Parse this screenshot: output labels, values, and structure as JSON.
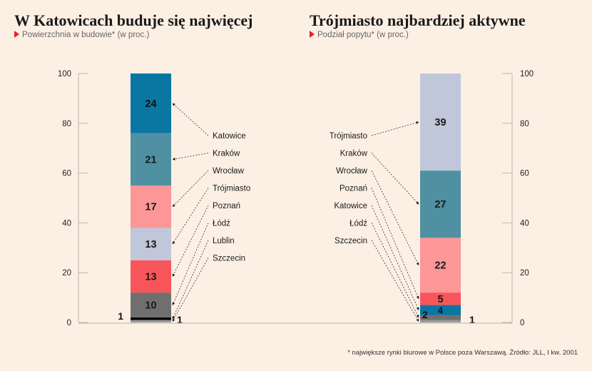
{
  "chart_data": [
    {
      "type": "bar",
      "stacked": true,
      "title": "W Katowicach buduje się najwięcej",
      "subtitle": "Powierzchnia w budowie* (w proc.)",
      "ylim": [
        0,
        100
      ],
      "yticks": [
        "0",
        "20",
        "40",
        "60",
        "80",
        "100"
      ],
      "axis_side": "left",
      "series": [
        {
          "name": "Katowice",
          "value": 24,
          "label": "24",
          "color": "#0a76a2"
        },
        {
          "name": "Kraków",
          "value": 21,
          "label": "21",
          "color": "#4f91a2"
        },
        {
          "name": "Wrocław",
          "value": 17,
          "label": "17",
          "color": "#fc9697"
        },
        {
          "name": "Trójmiasto",
          "value": 13,
          "label": "13",
          "color": "#c0c7da"
        },
        {
          "name": "Poznań",
          "value": 13,
          "label": "13",
          "color": "#f8555a"
        },
        {
          "name": "Łódź",
          "value": 10,
          "label": "10",
          "color": "#6f6f6f"
        },
        {
          "name": "Lublin",
          "value": 1,
          "label": "1",
          "color": "#000000"
        },
        {
          "name": "Szczecin",
          "value": 1,
          "label": "1",
          "color": "#9a9a9a"
        }
      ]
    },
    {
      "type": "bar",
      "stacked": true,
      "title": "Trójmiasto najbardziej aktywne",
      "subtitle": "Podział popytu* (w proc.)",
      "ylim": [
        0,
        100
      ],
      "yticks": [
        "0",
        "20",
        "40",
        "60",
        "80",
        "100"
      ],
      "axis_side": "right",
      "series": [
        {
          "name": "Trójmiasto",
          "value": 39,
          "label": "39",
          "color": "#c0c7da"
        },
        {
          "name": "Kraków",
          "value": 27,
          "label": "27",
          "color": "#4f91a2"
        },
        {
          "name": "Wrocław",
          "value": 22,
          "label": "22",
          "color": "#fc9697"
        },
        {
          "name": "Poznań",
          "value": 5,
          "label": "5",
          "color": "#f8555a"
        },
        {
          "name": "Katowice",
          "value": 4,
          "label": "4",
          "color": "#0a76a2"
        },
        {
          "name": "Łódź",
          "value": 2,
          "label": "2",
          "color": "#6f6f6f"
        },
        {
          "name": "Szczecin",
          "value": 1,
          "label": "1",
          "color": "#9a9a9a"
        }
      ]
    }
  ],
  "footnote": "* największe rynki biurowe w Polsce poza Warszawą. Źródło: JLL, I kw. 2001"
}
